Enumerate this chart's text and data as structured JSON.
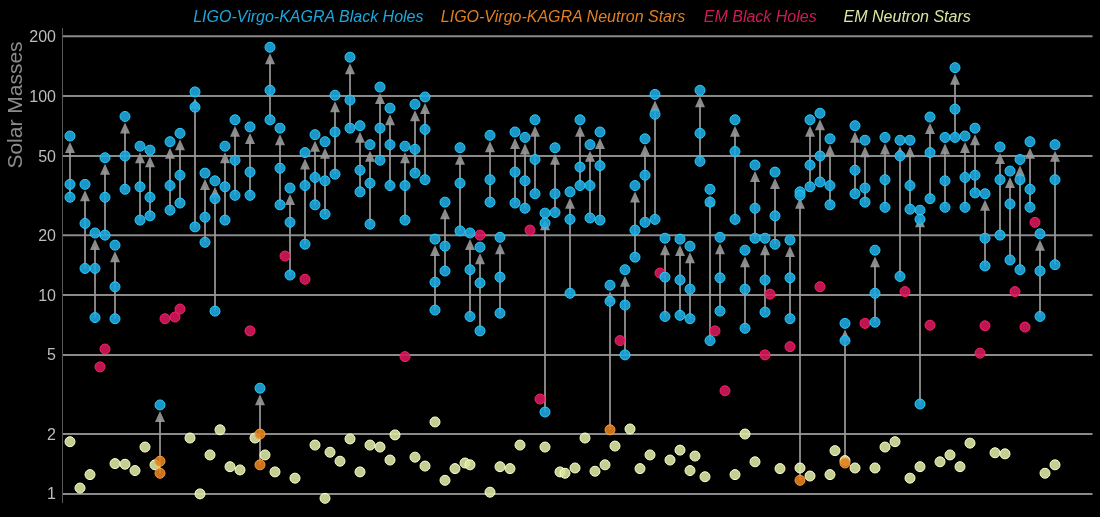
{
  "chart_data": {
    "type": "scatter",
    "ylabel": "Solar Masses",
    "log": "y",
    "grid": "y",
    "marker": "circle",
    "tick_labels": "y",
    "categories": [
      null,
      null,
      null,
      null,
      null,
      null,
      null,
      null,
      null,
      null,
      null,
      null,
      null,
      null,
      null,
      null,
      null,
      null,
      null,
      null,
      null,
      null,
      null,
      null,
      null,
      null,
      null,
      null,
      null,
      null,
      null,
      null,
      null,
      null,
      null,
      null,
      null,
      null,
      null,
      null,
      null,
      null,
      null,
      null,
      null,
      null,
      null,
      null,
      null,
      null,
      null,
      null,
      null,
      null,
      null,
      null,
      null,
      null,
      null,
      null,
      null,
      null,
      null,
      null,
      null,
      null,
      null,
      null,
      null,
      null,
      null,
      null,
      null,
      null,
      null,
      null,
      null,
      null,
      null,
      null,
      null,
      null,
      null,
      null,
      null,
      null,
      null,
      null,
      null,
      null,
      null,
      null,
      null,
      null,
      null,
      null,
      null,
      null,
      null,
      null,
      null,
      null,
      null,
      null,
      null,
      null,
      null,
      null,
      null,
      null,
      null,
      null,
      null,
      null,
      null,
      null,
      null,
      null,
      null,
      null,
      null,
      null,
      null,
      null,
      null,
      null,
      null,
      null,
      null,
      null,
      null,
      null,
      null,
      null,
      null,
      null,
      null,
      null,
      null,
      null,
      null,
      null,
      null,
      null,
      null,
      null,
      null,
      null,
      null,
      null,
      null,
      null,
      null,
      null,
      null,
      null,
      null,
      null,
      null,
      null,
      null,
      null,
      null,
      null,
      null,
      null,
      null,
      null,
      null,
      null,
      null,
      null,
      null,
      null,
      null,
      null,
      null,
      null,
      null,
      null,
      null,
      null,
      null,
      null,
      null,
      null,
      null,
      null,
      null,
      null,
      null,
      null,
      null,
      null,
      null,
      null,
      null,
      null,
      null,
      null,
      null,
      null,
      null,
      null,
      null,
      null
    ],
    "ylim": [
      0.9,
      220
    ],
    "yticks": [
      1,
      2,
      5,
      10,
      20,
      50,
      100,
      200
    ],
    "series": [
      {
        "name": "LIGO-Virgo-KAGRA Black Holes",
        "color": "#1fa6db",
        "values": [
          null,
          63,
          null,
          null,
          36,
          null,
          20.5,
          null,
          49,
          null,
          17.8,
          null,
          79,
          null,
          null,
          56,
          null,
          53.5,
          null,
          2.8,
          null,
          59,
          null,
          65,
          null,
          null,
          105,
          null,
          41,
          null,
          37.5,
          null,
          56,
          null,
          76,
          null,
          null,
          70,
          null,
          3.4,
          null,
          176,
          null,
          69,
          null,
          34.5,
          null,
          null,
          52,
          null,
          64,
          null,
          59,
          null,
          101,
          null,
          null,
          157,
          null,
          71,
          null,
          57,
          null,
          111,
          null,
          87,
          null,
          null,
          56,
          null,
          91,
          null,
          99,
          null,
          19.1,
          null,
          29.3,
          null,
          null,
          55,
          null,
          20.5,
          null,
          17.4,
          null,
          63.5,
          null,
          19.5,
          null,
          null,
          66,
          null,
          62,
          null,
          76,
          null,
          25.8,
          null,
          55,
          null,
          null,
          33,
          null,
          76,
          null,
          57,
          null,
          66,
          null,
          11.2,
          null,
          null,
          13.4,
          null,
          35.5,
          null,
          61,
          null,
          102,
          null,
          19.3,
          null,
          null,
          19.1,
          null,
          17.6,
          null,
          107,
          null,
          34,
          null,
          19.5,
          null,
          null,
          76,
          null,
          16.8,
          null,
          45,
          null,
          19.3,
          null,
          41.5,
          null,
          null,
          18.9,
          null,
          33,
          null,
          76,
          null,
          82,
          null,
          61,
          null,
          null,
          7.2,
          null,
          71,
          null,
          60,
          null,
          16.8,
          null,
          62,
          null,
          null,
          60,
          null,
          60,
          null,
          26.7,
          null,
          78.5,
          null,
          null,
          62,
          null,
          139,
          null,
          63,
          null,
          69,
          null,
          32.3,
          null,
          null,
          55.5,
          null,
          42,
          null,
          48,
          null,
          59,
          null,
          20.3,
          null,
          null,
          57,
          null,
          null,
          null,
          null,
          null,
          null,
          null
        ]
      },
      {
        "color": "#1fa6db",
        "values": [
          null,
          36,
          null,
          null,
          22.9,
          null,
          13.6,
          null,
          31,
          null,
          11,
          null,
          50,
          null,
          null,
          35,
          null,
          31,
          null,
          null,
          null,
          35.5,
          null,
          40,
          null,
          null,
          88,
          null,
          24.6,
          null,
          30.5,
          null,
          35,
          null,
          47.6,
          null,
          null,
          41.5,
          null,
          null,
          null,
          107,
          null,
          43.4,
          null,
          23.2,
          null,
          null,
          35.5,
          null,
          39,
          null,
          37.5,
          null,
          66,
          null,
          null,
          95.5,
          null,
          42.4,
          null,
          36.5,
          null,
          69,
          null,
          57,
          null,
          null,
          35.5,
          null,
          54,
          null,
          68,
          null,
          11.6,
          null,
          17.6,
          null,
          null,
          36.5,
          null,
          13.4,
          null,
          11.5,
          null,
          38,
          null,
          12.3,
          null,
          null,
          41.5,
          null,
          37.5,
          null,
          48,
          null,
          23,
          null,
          32.3,
          null,
          null,
          24,
          null,
          44,
          null,
          35.5,
          null,
          44.7,
          null,
          9.3,
          null,
          null,
          8.9,
          null,
          21.2,
          null,
          40,
          null,
          81,
          null,
          12.3,
          null,
          null,
          11.9,
          null,
          10.7,
          null,
          65,
          null,
          29.3,
          null,
          12.2,
          null,
          null,
          52.7,
          null,
          10.7,
          null,
          27.3,
          null,
          11.9,
          null,
          25,
          null,
          null,
          12.2,
          null,
          31.7,
          null,
          45,
          null,
          50,
          null,
          35.5,
          null,
          null,
          5.9,
          null,
          42.4,
          null,
          34.5,
          null,
          10.2,
          null,
          38,
          null,
          null,
          50,
          null,
          35.5,
          null,
          24,
          null,
          52,
          null,
          null,
          37.5,
          null,
          86,
          null,
          39,
          null,
          40,
          null,
          19.3,
          null,
          null,
          38,
          null,
          28.7,
          null,
          38,
          null,
          34,
          null,
          13.2,
          null,
          null,
          38,
          null,
          null,
          null,
          null,
          null,
          null,
          null
        ]
      },
      {
        "color": "#1fa6db",
        "values": [
          null,
          31,
          null,
          null,
          13.6,
          null,
          7.7,
          null,
          20,
          null,
          7.6,
          null,
          34,
          null,
          null,
          23.8,
          null,
          25,
          null,
          null,
          null,
          26.7,
          null,
          29,
          null,
          null,
          22,
          null,
          18.4,
          null,
          8.3,
          null,
          23.8,
          null,
          31.7,
          null,
          null,
          31.7,
          null,
          null,
          null,
          76,
          null,
          28.4,
          null,
          12.6,
          null,
          null,
          18,
          null,
          28.4,
          null,
          25.5,
          null,
          40.5,
          null,
          null,
          69,
          null,
          33,
          null,
          22.7,
          null,
          47.6,
          null,
          35.5,
          null,
          null,
          23.8,
          null,
          41,
          null,
          38,
          null,
          8.4,
          null,
          13.2,
          null,
          null,
          21,
          null,
          7.8,
          null,
          6.6,
          null,
          29.3,
          null,
          8.1,
          null,
          null,
          29,
          null,
          27.3,
          null,
          32.3,
          null,
          2.58,
          null,
          26,
          null,
          null,
          10.2,
          null,
          35.5,
          null,
          24.4,
          null,
          23.8,
          null,
          null,
          null,
          null,
          5,
          null,
          15.5,
          null,
          23.2,
          null,
          24,
          null,
          7.8,
          null,
          null,
          7.9,
          null,
          7.6,
          null,
          47,
          null,
          5.9,
          null,
          8.3,
          null,
          null,
          24,
          null,
          6.8,
          null,
          19.3,
          null,
          8.2,
          null,
          18,
          null,
          null,
          7.6,
          null,
          null,
          null,
          35,
          null,
          37,
          null,
          28.4,
          null,
          null,
          null,
          null,
          32.3,
          null,
          29.3,
          null,
          7.3,
          null,
          27.6,
          null,
          null,
          12.4,
          null,
          27,
          null,
          2.83,
          null,
          30.5,
          null,
          null,
          27.6,
          null,
          62,
          null,
          27.6,
          null,
          32.6,
          null,
          14,
          null,
          null,
          20,
          null,
          15,
          null,
          13.4,
          null,
          27.6,
          null,
          7.8,
          null,
          null,
          14.2,
          null,
          null,
          null,
          null,
          null,
          null,
          null
        ]
      },
      {
        "name": "LIGO-Virgo-KAGRA Neutron Stars",
        "color": "#e07f22",
        "values": [
          null,
          null,
          null,
          null,
          null,
          null,
          null,
          null,
          null,
          null,
          null,
          null,
          null,
          null,
          null,
          null,
          null,
          null,
          null,
          1.46,
          null,
          null,
          null,
          null,
          null,
          null,
          null,
          null,
          null,
          null,
          null,
          null,
          null,
          null,
          null,
          null,
          null,
          null,
          null,
          2.0,
          null,
          null,
          null,
          null,
          null,
          null,
          null,
          null,
          null,
          null,
          null,
          null,
          null,
          null,
          null,
          null,
          null,
          null,
          null,
          null,
          null,
          null,
          null,
          null,
          null,
          null,
          null,
          null,
          null,
          null,
          null,
          null,
          null,
          null,
          null,
          null,
          null,
          null,
          null,
          null,
          null,
          null,
          null,
          null,
          null,
          null,
          null,
          null,
          null,
          null,
          null,
          null,
          null,
          null,
          null,
          null,
          null,
          null,
          null,
          null,
          null,
          null,
          null,
          null,
          null,
          null,
          null,
          null,
          null,
          2.1,
          null,
          null,
          null,
          null,
          null,
          null,
          null,
          null,
          null,
          null,
          null,
          null,
          null,
          null,
          null,
          null,
          null,
          null,
          null,
          null,
          null,
          null,
          null,
          null,
          null,
          null,
          null,
          null,
          null,
          null,
          null,
          null,
          null,
          null,
          null,
          null,
          null,
          1.17,
          null,
          null,
          null,
          null,
          null,
          null,
          null,
          null,
          1.43,
          null,
          null,
          null,
          null,
          null,
          null,
          null,
          null,
          null,
          null,
          null,
          null,
          null,
          null,
          null,
          null,
          null,
          null,
          null,
          null,
          null,
          null,
          null,
          null,
          null,
          null,
          null,
          null,
          null,
          null,
          null,
          null,
          null,
          null,
          null,
          null,
          null,
          null,
          null,
          null,
          null,
          null,
          null,
          null,
          null,
          null,
          null,
          null,
          null
        ]
      },
      {
        "color": "#e07f22",
        "values": [
          null,
          null,
          null,
          null,
          null,
          null,
          null,
          null,
          null,
          null,
          null,
          null,
          null,
          null,
          null,
          null,
          null,
          null,
          null,
          1.27,
          null,
          null,
          null,
          null,
          null,
          null,
          null,
          null,
          null,
          null,
          null,
          null,
          null,
          null,
          null,
          null,
          null,
          null,
          null,
          1.4,
          null,
          null,
          null,
          null,
          null,
          null,
          null,
          null,
          null,
          null,
          null,
          null,
          null,
          null,
          null,
          null,
          null,
          null,
          null,
          null,
          null,
          null,
          null,
          null,
          null,
          null,
          null,
          null,
          null,
          null,
          null,
          null,
          null,
          null,
          null,
          null,
          null,
          null,
          null,
          null,
          null,
          null,
          null,
          null,
          null,
          null,
          null,
          null,
          null,
          null,
          null,
          null,
          null,
          null,
          null,
          null,
          null,
          null,
          null,
          null,
          null,
          null,
          null,
          null,
          null,
          null,
          null,
          null,
          null,
          null,
          null,
          null,
          null,
          null,
          null,
          null,
          null,
          null,
          null,
          null,
          null,
          null,
          null,
          null,
          null,
          null,
          null,
          null,
          null,
          null,
          null,
          null,
          null,
          null,
          null,
          null,
          null,
          null,
          null,
          null,
          null,
          null,
          null,
          null,
          null,
          null,
          null,
          null,
          null,
          null,
          null,
          null,
          null,
          null,
          null,
          null,
          null,
          null,
          null,
          null,
          null,
          null,
          null,
          null,
          null,
          null,
          null,
          null,
          null,
          null,
          null,
          null,
          null,
          null,
          null,
          null,
          null,
          null,
          null,
          null,
          null,
          null,
          null,
          null,
          null,
          null,
          null,
          null,
          null,
          null,
          null,
          null,
          null,
          null,
          null,
          null,
          null,
          null,
          null,
          null,
          null,
          null,
          null,
          null,
          null,
          null
        ]
      },
      {
        "name": "EM Black Holes",
        "color": "#d1185a",
        "values": [
          null,
          null,
          null,
          null,
          null,
          null,
          null,
          4.35,
          5.35,
          null,
          null,
          null,
          null,
          null,
          null,
          null,
          null,
          null,
          null,
          null,
          7.6,
          null,
          7.75,
          8.5,
          null,
          null,
          null,
          null,
          null,
          null,
          null,
          null,
          null,
          null,
          null,
          null,
          null,
          6.6,
          null,
          null,
          null,
          null,
          null,
          null,
          15.7,
          null,
          null,
          null,
          12,
          null,
          null,
          null,
          null,
          null,
          null,
          null,
          null,
          null,
          null,
          null,
          null,
          null,
          null,
          null,
          null,
          null,
          null,
          null,
          4.9,
          null,
          null,
          null,
          null,
          null,
          null,
          null,
          null,
          null,
          null,
          null,
          null,
          null,
          null,
          20,
          null,
          null,
          null,
          null,
          null,
          null,
          null,
          null,
          null,
          21.2,
          null,
          3.0,
          null,
          null,
          null,
          null,
          null,
          null,
          null,
          null,
          null,
          null,
          null,
          null,
          null,
          null,
          null,
          5.9,
          null,
          null,
          null,
          null,
          null,
          null,
          null,
          12.9,
          null,
          null,
          null,
          null,
          null,
          null,
          null,
          null,
          null,
          null,
          6.6,
          null,
          3.3,
          null,
          null,
          null,
          null,
          null,
          null,
          null,
          5.0,
          10.1,
          null,
          null,
          null,
          5.5,
          null,
          null,
          null,
          null,
          null,
          11,
          null,
          null,
          null,
          null,
          null,
          null,
          null,
          null,
          7.2,
          null,
          null,
          null,
          null,
          null,
          null,
          null,
          10.4,
          null,
          null,
          null,
          null,
          7.05,
          null,
          null,
          null,
          null,
          null,
          null,
          null,
          null,
          null,
          5.1,
          7.0,
          null,
          null,
          null,
          null,
          null,
          10.4,
          null,
          6.9,
          null,
          23.2,
          null,
          null,
          null,
          null,
          null,
          null,
          null,
          null,
          null,
          null,
          null
        ]
      },
      {
        "name": "EM Neutron Stars",
        "color": "#d8e6a2",
        "values": [
          null,
          1.83,
          null,
          1.07,
          null,
          1.25,
          null,
          null,
          null,
          null,
          1.42,
          null,
          1.41,
          null,
          1.31,
          null,
          1.72,
          null,
          1.4,
          null,
          null,
          null,
          null,
          null,
          null,
          1.91,
          null,
          1.0,
          null,
          1.57,
          null,
          2.1,
          null,
          1.37,
          null,
          1.32,
          null,
          null,
          1.91,
          null,
          1.57,
          null,
          1.29,
          null,
          null,
          null,
          1.2,
          null,
          null,
          null,
          1.76,
          null,
          0.95,
          1.62,
          null,
          1.46,
          null,
          1.89,
          null,
          1.29,
          null,
          1.76,
          null,
          1.72,
          null,
          1.48,
          1.98,
          null,
          null,
          null,
          1.53,
          null,
          1.38,
          null,
          2.3,
          null,
          1.17,
          null,
          1.34,
          null,
          1.43,
          1.4,
          null,
          null,
          null,
          1.02,
          null,
          1.37,
          null,
          1.34,
          null,
          1.76,
          null,
          null,
          null,
          null,
          1.72,
          null,
          null,
          1.29,
          1.27,
          null,
          1.35,
          null,
          1.91,
          null,
          1.3,
          null,
          1.4,
          null,
          1.74,
          null,
          null,
          2.12,
          null,
          1.34,
          null,
          1.57,
          null,
          null,
          null,
          1.48,
          null,
          1.66,
          null,
          1.31,
          1.55,
          null,
          1.22,
          null,
          null,
          null,
          null,
          null,
          1.25,
          null,
          2.0,
          null,
          1.45,
          null,
          null,
          null,
          null,
          1.34,
          null,
          null,
          null,
          1.35,
          null,
          1.23,
          null,
          null,
          null,
          1.25,
          1.65,
          null,
          1.47,
          null,
          1.35,
          null,
          null,
          null,
          1.35,
          null,
          1.72,
          null,
          1.83,
          null,
          null,
          1.2,
          null,
          1.37,
          null,
          null,
          null,
          1.45,
          null,
          1.57,
          null,
          1.37,
          null,
          1.8,
          null,
          null,
          null,
          null,
          1.61,
          null,
          1.59,
          null,
          null,
          null,
          null,
          null,
          null,
          null,
          1.27,
          null,
          1.4,
          null,
          null,
          null,
          null,
          null,
          null,
          null
        ]
      }
    ]
  }
}
